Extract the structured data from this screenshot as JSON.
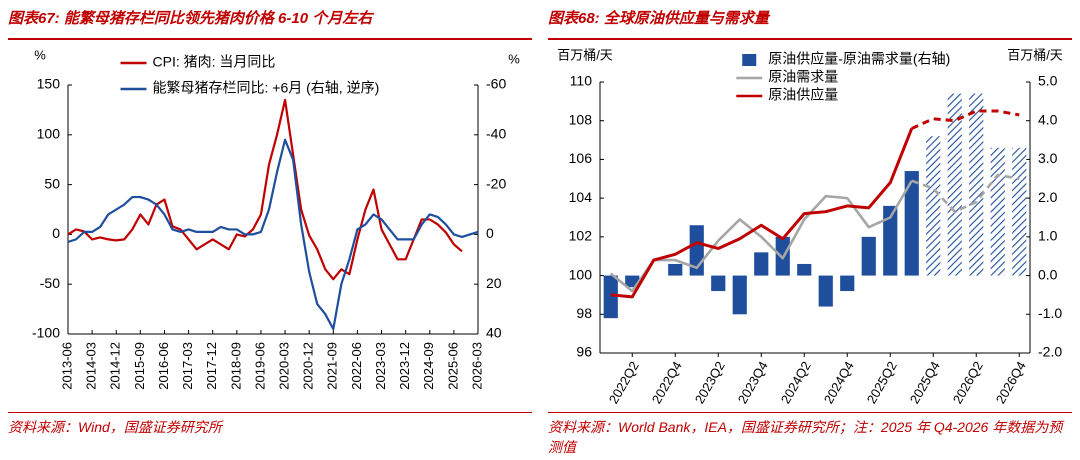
{
  "chart_data": [
    {
      "type": "line",
      "title": "图表67: 能繁母猪存栏同比领先猪肉价格 6-10 个月左右",
      "source": "资料来源：Wind，国盛证券研究所",
      "y_label": "%",
      "y2_label": "%",
      "x": [
        "2013-06",
        "2013-09",
        "2013-12",
        "2014-03",
        "2014-06",
        "2014-09",
        "2014-12",
        "2015-03",
        "2015-06",
        "2015-09",
        "2015-12",
        "2016-03",
        "2016-06",
        "2016-09",
        "2016-12",
        "2017-03",
        "2017-06",
        "2017-09",
        "2017-12",
        "2018-03",
        "2018-06",
        "2018-09",
        "2018-12",
        "2019-03",
        "2019-06",
        "2019-09",
        "2019-12",
        "2020-03",
        "2020-06",
        "2020-09",
        "2020-12",
        "2021-03",
        "2021-06",
        "2021-09",
        "2021-12",
        "2022-03",
        "2022-06",
        "2022-09",
        "2022-12",
        "2023-03",
        "2023-06",
        "2023-09",
        "2023-12",
        "2024-03",
        "2024-06",
        "2024-09",
        "2024-12",
        "2025-03",
        "2025-06",
        "2025-09",
        "2025-12",
        "2026-03"
      ],
      "xlim": [
        "2013-06",
        "2026-03"
      ],
      "xticks": [
        "2013-06",
        "2014-03",
        "2014-12",
        "2015-09",
        "2016-06",
        "2017-03",
        "2017-12",
        "2018-09",
        "2019-06",
        "2020-03",
        "2020-12",
        "2021-09",
        "2022-06",
        "2023-03",
        "2023-12",
        "2024-09",
        "2025-06",
        "2026-03"
      ],
      "ylim": [
        -100,
        150
      ],
      "yticks": [
        -100,
        -50,
        0,
        50,
        100,
        150
      ],
      "y2lim": [
        40,
        -60
      ],
      "y2ticks": [
        -60,
        -40,
        -20,
        0,
        20,
        40
      ],
      "grid": false,
      "legend": "upper center",
      "series": [
        {
          "name": "CPI: 猪肉: 当月同比",
          "color": "#c00000",
          "values": [
            0,
            5,
            3,
            -5,
            -3,
            -5,
            -6,
            -5,
            5,
            20,
            10,
            30,
            35,
            8,
            5,
            -5,
            -15,
            -10,
            -5,
            -10,
            -15,
            0,
            -2,
            5,
            20,
            70,
            100,
            135,
            80,
            25,
            -1,
            -15,
            -35,
            -45,
            -35,
            -40,
            -5,
            25,
            45,
            5,
            -10,
            -25,
            -25,
            -5,
            15,
            15,
            10,
            2,
            -10,
            -17,
            null,
            null
          ]
        },
        {
          "name": "能繁母猪存栏同比: +6月 (右轴, 逆序)",
          "color": "#1f4e9c",
          "axis": "y2",
          "values": [
            3,
            2,
            -1,
            -1,
            -3,
            -8,
            -10,
            -12,
            -15,
            -15,
            -14,
            -12,
            -8,
            -2,
            -1,
            -2,
            -1,
            -1,
            -1,
            -3,
            -2,
            -2,
            0,
            0,
            -1,
            -10,
            -25,
            -38,
            -30,
            -4,
            15,
            28,
            32,
            38,
            20,
            10,
            -2,
            -4,
            -8,
            -6,
            -2,
            2,
            2,
            2,
            -4,
            -8,
            -7,
            -4,
            0,
            1,
            0,
            -1
          ]
        }
      ]
    },
    {
      "type": "combo",
      "title": "图表68: 全球原油供应量与需求量",
      "source": "资料来源：World Bank，IEA，国盛证券研究所；注：2025 年 Q4-2026 年数据为预测值",
      "y_label": "百万桶/天",
      "y2_label": "百万桶/天",
      "categories": [
        null,
        "2022Q2",
        null,
        "2022Q4",
        null,
        "2023Q2",
        null,
        "2023Q4",
        null,
        "2024Q2",
        null,
        "2024Q4",
        null,
        "2025Q2",
        null,
        "2025Q4",
        null,
        "2026Q2",
        null,
        "2026Q4"
      ],
      "ylim": [
        96,
        110
      ],
      "yticks": [
        96,
        98,
        100,
        102,
        104,
        106,
        108,
        110
      ],
      "y2lim": [
        -2,
        5
      ],
      "y2ticks": [
        {
          "value": -2,
          "label": "-2.0"
        },
        {
          "value": -1,
          "label": "-1.0"
        },
        {
          "value": 0,
          "label": "0.0"
        },
        {
          "value": 1,
          "label": "1.0"
        },
        {
          "value": 2,
          "label": "2.0"
        },
        {
          "value": 3,
          "label": "3.0"
        },
        {
          "value": 4,
          "label": "4.0"
        },
        {
          "value": 5,
          "label": "5.0"
        }
      ],
      "grid": false,
      "legend": "upper center",
      "series": [
        {
          "name": "原油供应量-原油需求量(右轴)",
          "type": "bar",
          "axis": "y2",
          "color": "#1f4e9c",
          "values": [
            -1.1,
            -0.3,
            0.0,
            0.3,
            1.3,
            -0.4,
            -1.0,
            0.6,
            1.0,
            0.3,
            -0.8,
            -0.4,
            1.0,
            1.8,
            2.7,
            3.6,
            4.7,
            4.7,
            3.3,
            3.3
          ],
          "styles": [
            "solid",
            "solid",
            "solid",
            "solid",
            "solid",
            "solid",
            "solid",
            "solid",
            "solid",
            "solid",
            "solid",
            "solid",
            "solid",
            "solid",
            "solid",
            "hatched",
            "hatched",
            "hatched",
            "hatched",
            "hatched"
          ]
        },
        {
          "name": "原油需求量",
          "type": "line",
          "color": "#a6a6a6",
          "values": [
            100.1,
            99.2,
            100.8,
            100.8,
            100.4,
            101.8,
            102.9,
            102.0,
            100.9,
            102.9,
            104.1,
            104.0,
            102.5,
            103.0,
            104.9,
            104.5,
            103.3,
            103.8,
            105.2,
            105.0
          ],
          "styles": [
            "solid",
            "solid",
            "solid",
            "solid",
            "solid",
            "solid",
            "solid",
            "solid",
            "solid",
            "solid",
            "solid",
            "solid",
            "solid",
            "solid",
            "solid",
            "dashed",
            "dashed",
            "dashed",
            "dashed",
            "dashed"
          ]
        },
        {
          "name": "原油供应量",
          "type": "line",
          "color": "#c00000",
          "values": [
            99.0,
            98.9,
            100.8,
            101.1,
            101.7,
            101.4,
            101.9,
            102.6,
            101.9,
            103.2,
            103.3,
            103.6,
            103.5,
            104.8,
            107.6,
            108.1,
            108.0,
            108.5,
            108.5,
            108.3
          ],
          "styles": [
            "solid",
            "solid",
            "solid",
            "solid",
            "solid",
            "solid",
            "solid",
            "solid",
            "solid",
            "solid",
            "solid",
            "solid",
            "solid",
            "solid",
            "solid",
            "dashed",
            "dashed",
            "dashed",
            "dashed",
            "dashed"
          ]
        }
      ]
    }
  ]
}
